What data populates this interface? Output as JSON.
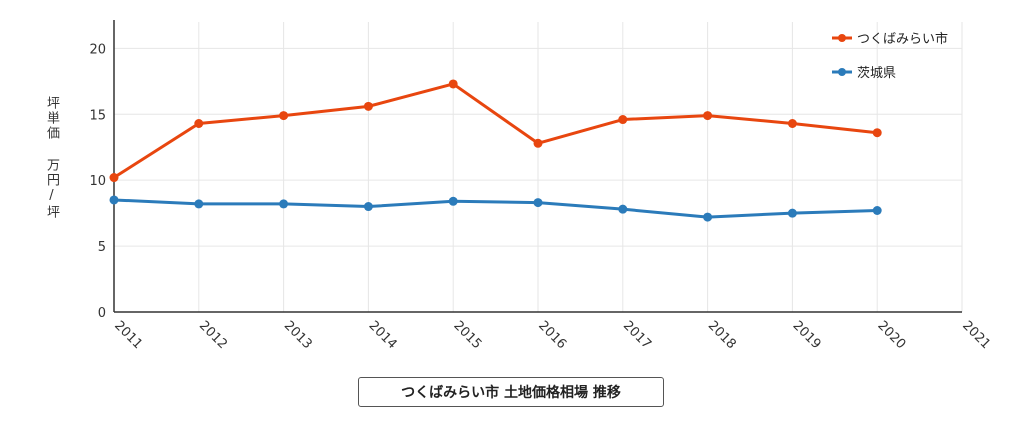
{
  "chart_data": {
    "type": "line",
    "title": "つくばみらい市 土地価格相場 推移",
    "ylabel": "坪単価 万円/坪",
    "xlabel": "",
    "x": [
      2011,
      2012,
      2013,
      2014,
      2015,
      2016,
      2017,
      2018,
      2019,
      2020
    ],
    "x_ticks": [
      "2011",
      "2012",
      "2013",
      "2014",
      "2015",
      "2016",
      "2017",
      "2018",
      "2019",
      "2020",
      "2021"
    ],
    "xlim": [
      2011,
      2021
    ],
    "ylim": [
      0,
      22
    ],
    "y_ticks": [
      0,
      5,
      10,
      15,
      20
    ],
    "grid": true,
    "legend_position": "top-right",
    "series": [
      {
        "name": "つくばみらい市",
        "color": "#e8460f",
        "values": [
          10.2,
          14.3,
          14.9,
          15.6,
          17.3,
          12.8,
          14.6,
          14.9,
          14.3,
          13.6
        ]
      },
      {
        "name": "茨城県",
        "color": "#2b7bba",
        "values": [
          8.5,
          8.2,
          8.2,
          8.0,
          8.4,
          8.3,
          7.8,
          7.2,
          7.5,
          7.7
        ]
      }
    ]
  }
}
